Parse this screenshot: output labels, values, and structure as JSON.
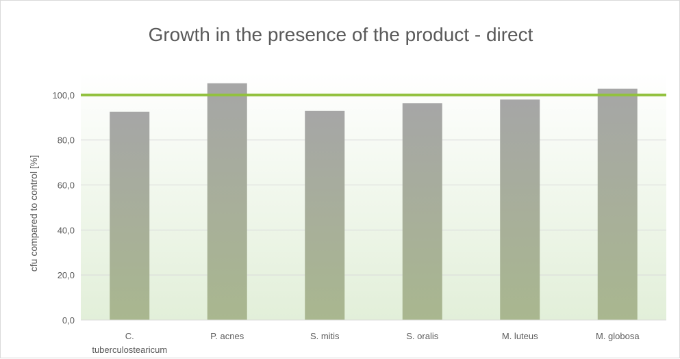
{
  "chart_data": {
    "type": "bar",
    "title": "Growth in the presence of the product - direct",
    "xlabel": "",
    "ylabel": "cfu compared to control  [%]",
    "categories": [
      "C. tuberculostearicum",
      "P. acnes",
      "S. mitis",
      "S. oralis",
      "M. luteus",
      "M. globosa"
    ],
    "category_lines": [
      [
        "C.",
        "tuberculostearicum"
      ],
      [
        "P. acnes"
      ],
      [
        "S. mitis"
      ],
      [
        "S. oralis"
      ],
      [
        "M. luteus"
      ],
      [
        "M. globosa"
      ]
    ],
    "values": [
      92.5,
      105.2,
      93.0,
      96.3,
      98.0,
      102.8
    ],
    "ylim": [
      0,
      110
    ],
    "yticks": [
      0,
      20,
      40,
      60,
      80,
      100
    ],
    "ytick_labels": [
      "0,0",
      "20,0",
      "40,0",
      "60,0",
      "80,0",
      "100,0"
    ],
    "reference_line": 100,
    "grid": true,
    "colors": {
      "bar_top": "#a6a6a6",
      "bar_bottom": "#a9b78f",
      "reference_line": "#92c13e",
      "plot_bg_top": "#ffffff",
      "plot_bg_bottom": "#e2efd9",
      "grid": "#d9d9d9"
    }
  }
}
